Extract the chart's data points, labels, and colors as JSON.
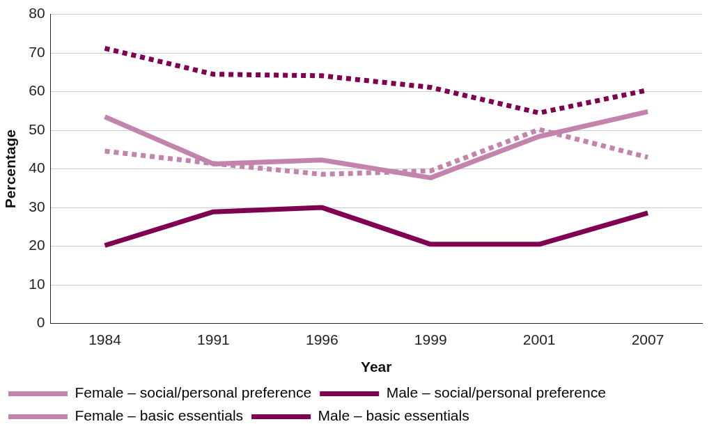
{
  "chart_data": {
    "type": "line",
    "xlabel": "Year",
    "ylabel": "Percentage",
    "categories": [
      "1984",
      "1991",
      "1996",
      "1999",
      "2001",
      "2007"
    ],
    "series": [
      {
        "name": "Female – social/personal preference",
        "color": "#c283ac",
        "line_style": "solid",
        "values": [
          53.5,
          41.3,
          42.3,
          37.7,
          48.4,
          54.8
        ]
      },
      {
        "name": "Male – social/personal preference",
        "color": "#7f0050",
        "line_style": "solid",
        "values": [
          20.2,
          28.9,
          30,
          20.5,
          20.5,
          28.6
        ]
      },
      {
        "name": "Female – basic essentials",
        "color": "#c283ac",
        "line_style": "dotted",
        "values": [
          44.6,
          41.4,
          38.6,
          39.5,
          50.2,
          43
        ]
      },
      {
        "name": "Male – basic essentials",
        "color": "#7f0050",
        "line_style": "dotted",
        "values": [
          71.2,
          64.5,
          64.1,
          61.1,
          54.5,
          60.4
        ]
      }
    ],
    "ylim": [
      0,
      80
    ],
    "yticks": [
      0,
      10,
      20,
      30,
      40,
      50,
      60,
      70,
      80
    ],
    "grid": "y",
    "legend": "bottom",
    "marker": "none"
  }
}
